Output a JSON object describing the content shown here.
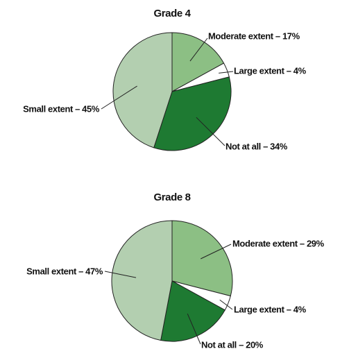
{
  "chart_data": [
    {
      "type": "pie",
      "title": "Grade 4",
      "values": [
        17,
        4,
        34,
        45
      ],
      "value_labels": [
        "Moderate extent – 17%",
        "Large extent – 4%",
        "Not at all – 34%",
        "Small extent – 45%"
      ],
      "colors": [
        "#8cbf84",
        "#ffffff",
        "#1e7a32",
        "#b3cfb0"
      ]
    },
    {
      "type": "pie",
      "title": "Grade 8",
      "values": [
        29,
        4,
        20,
        47
      ],
      "value_labels": [
        "Moderate extent – 29%",
        "Large extent – 4%",
        "Not at all – 20%",
        "Small extent – 47%"
      ],
      "colors": [
        "#8cbf84",
        "#ffffff",
        "#1e7a32",
        "#b3cfb0"
      ]
    }
  ]
}
